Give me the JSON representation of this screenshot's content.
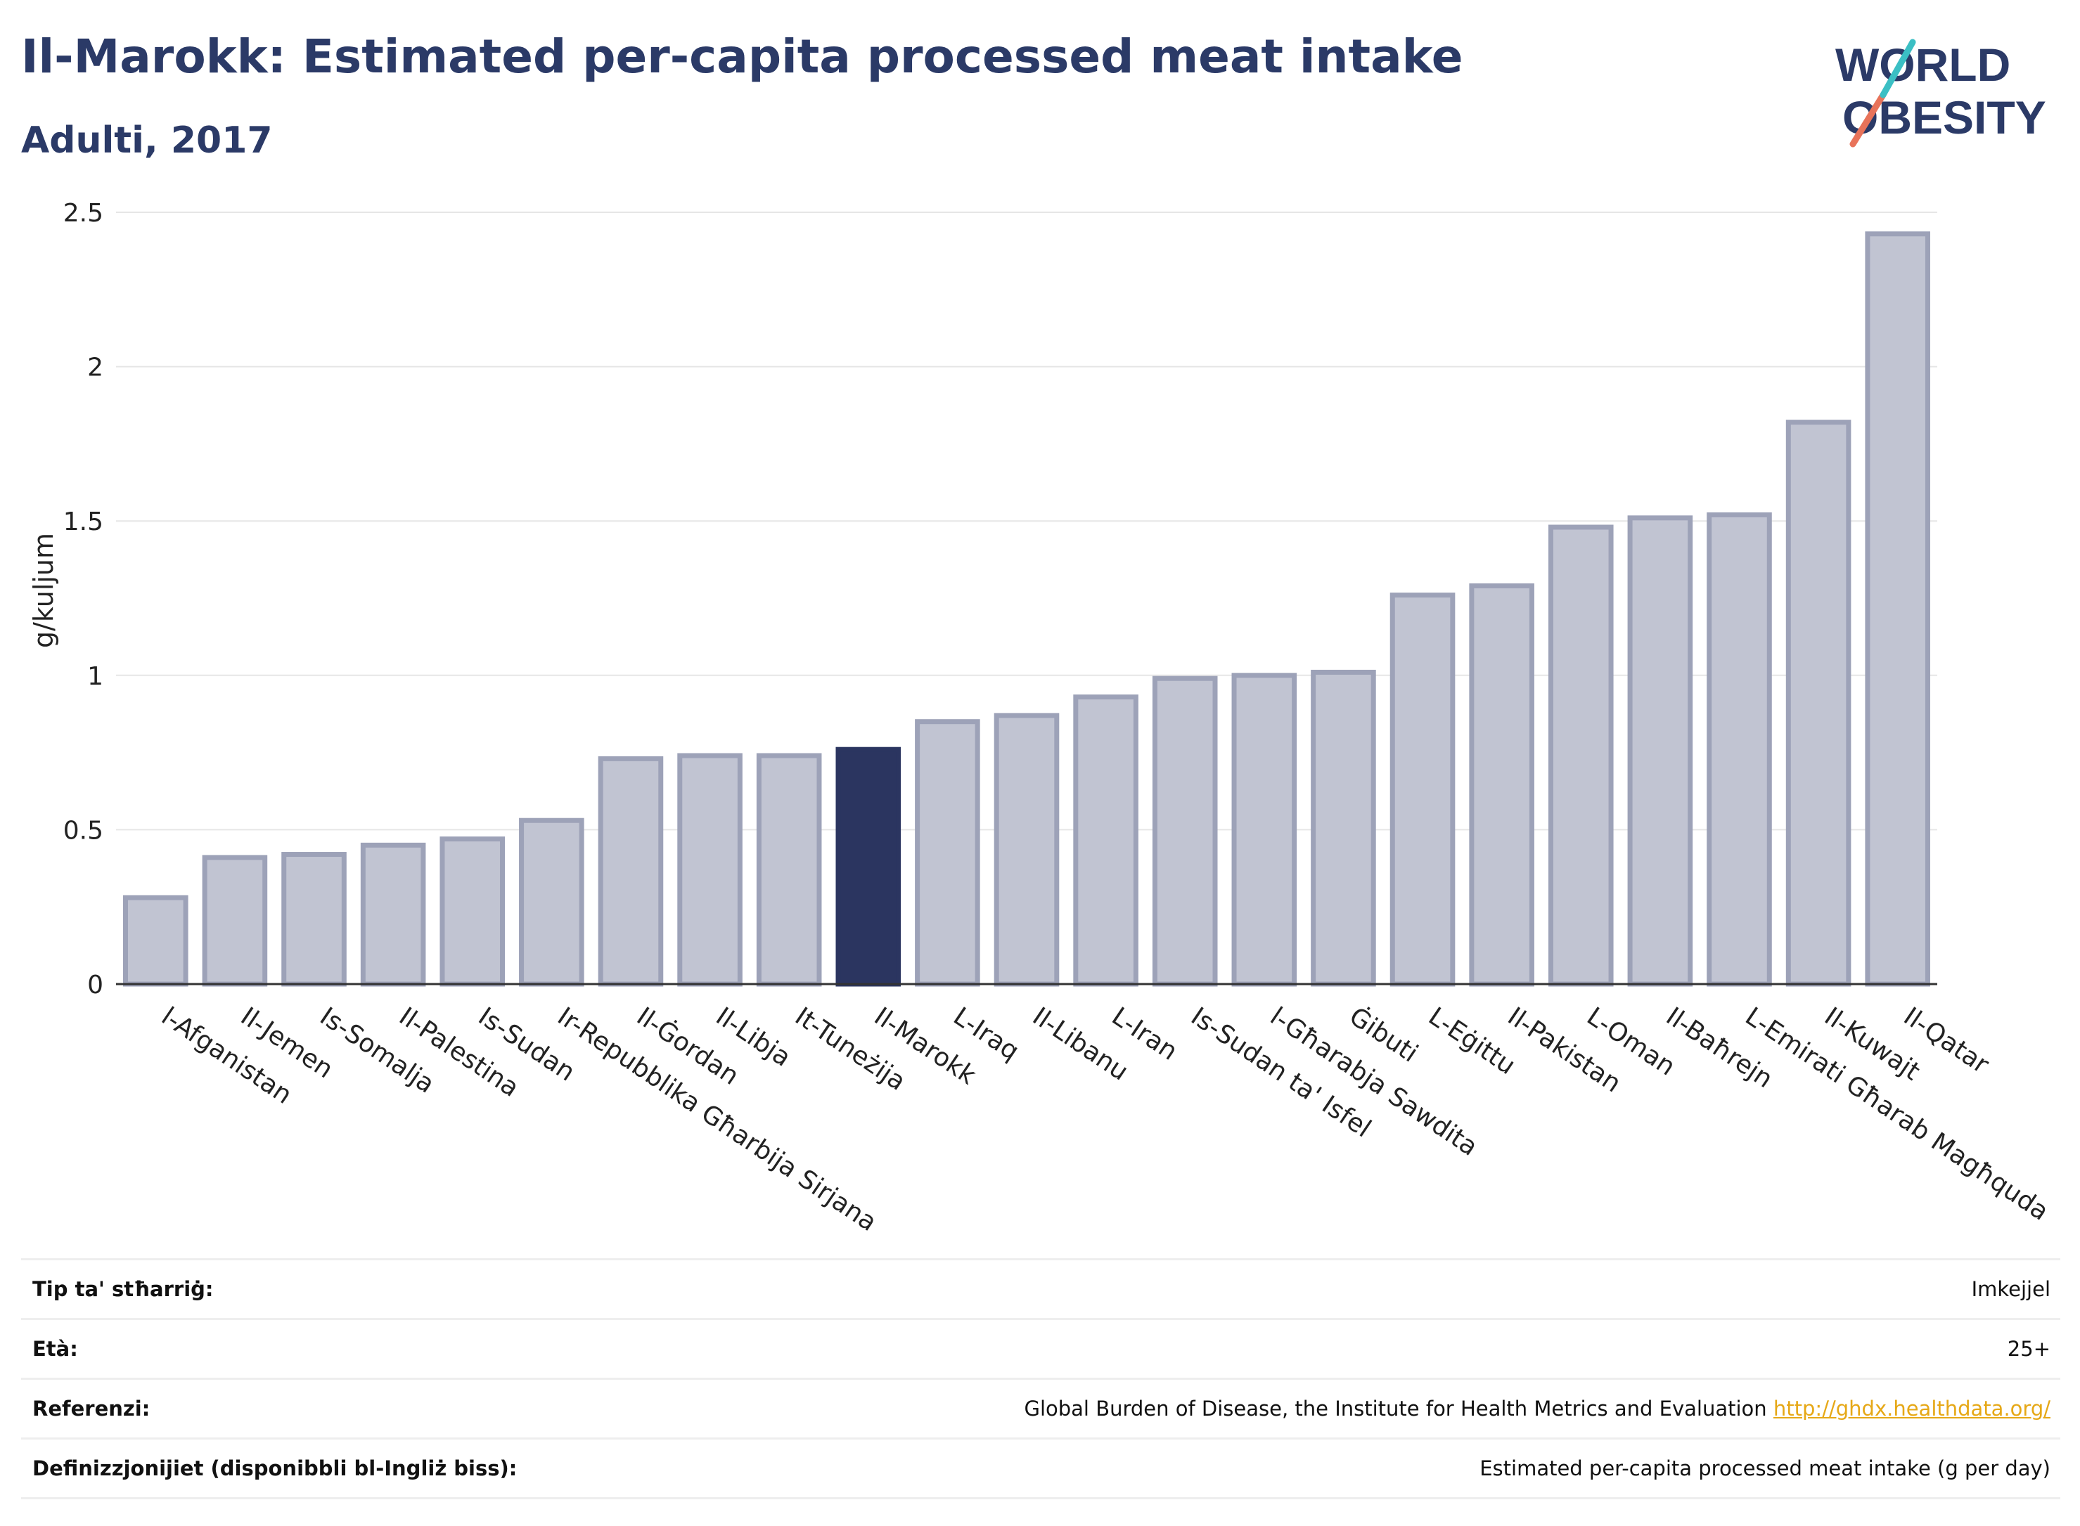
{
  "header": {
    "title": "Il-Marokk: Estimated per-capita processed meat intake",
    "subtitle": "Adulti, 2017"
  },
  "logo": {
    "line1": "WORLD",
    "line2": "OBESITY"
  },
  "colors": {
    "highlight": "#2b3560",
    "bar": "#c1c4d2",
    "bar_border": "#9da2b8",
    "title": "#2b3a67"
  },
  "chart_data": {
    "type": "bar",
    "title": "Il-Marokk: Estimated per-capita processed meat intake",
    "subtitle": "Adulti, 2017",
    "ylabel": "g/kuljum",
    "xlabel": "",
    "ylim": [
      0,
      2.5
    ],
    "yticks": [
      0,
      0.5,
      1,
      1.5,
      2,
      2.5
    ],
    "ytick_labels": [
      "0",
      "0.5",
      "1",
      "1.5",
      "2",
      "2.5"
    ],
    "grid": true,
    "highlight": "Il-Marokk",
    "categories": [
      "l-Afganistan",
      "Il-Jemen",
      "Is-Somalja",
      "Il-Palestina",
      "Is-Sudan",
      "Ir-Repubblika Għarbija Sirjana",
      "Il-Ġordan",
      "Il-Libja",
      "It-Tuneżija",
      "Il-Marokk",
      "L-Iraq",
      "Il-Libanu",
      "L-Iran",
      "Is-Sudan ta' Isfel",
      "l-Għarabja Sawdita",
      "Ġibuti",
      "L-Eġittu",
      "Il-Pakistan",
      "L-Oman",
      "Il-Baħrejn",
      "L-Emirati Għarab Magħquda",
      "Il-Kuwajt",
      "Il-Qatar"
    ],
    "values": [
      0.28,
      0.41,
      0.42,
      0.45,
      0.47,
      0.53,
      0.73,
      0.74,
      0.74,
      0.76,
      0.85,
      0.87,
      0.93,
      0.99,
      1.0,
      1.01,
      1.26,
      1.29,
      1.48,
      1.51,
      1.52,
      1.82,
      2.43
    ]
  },
  "meta": [
    {
      "label": "Tip ta' stħarriġ:",
      "value": "Imkejjel"
    },
    {
      "label": "Età:",
      "value": "25+"
    },
    {
      "label": "Referenzi:",
      "value": "Global Burden of Disease, the Institute for Health Metrics and Evaluation",
      "link": "http://ghdx.healthdata.org/"
    },
    {
      "label": "Definizzjonijiet (disponibbli bl-Ingliż biss):",
      "value": "Estimated per-capita processed meat intake (g per day)"
    }
  ]
}
